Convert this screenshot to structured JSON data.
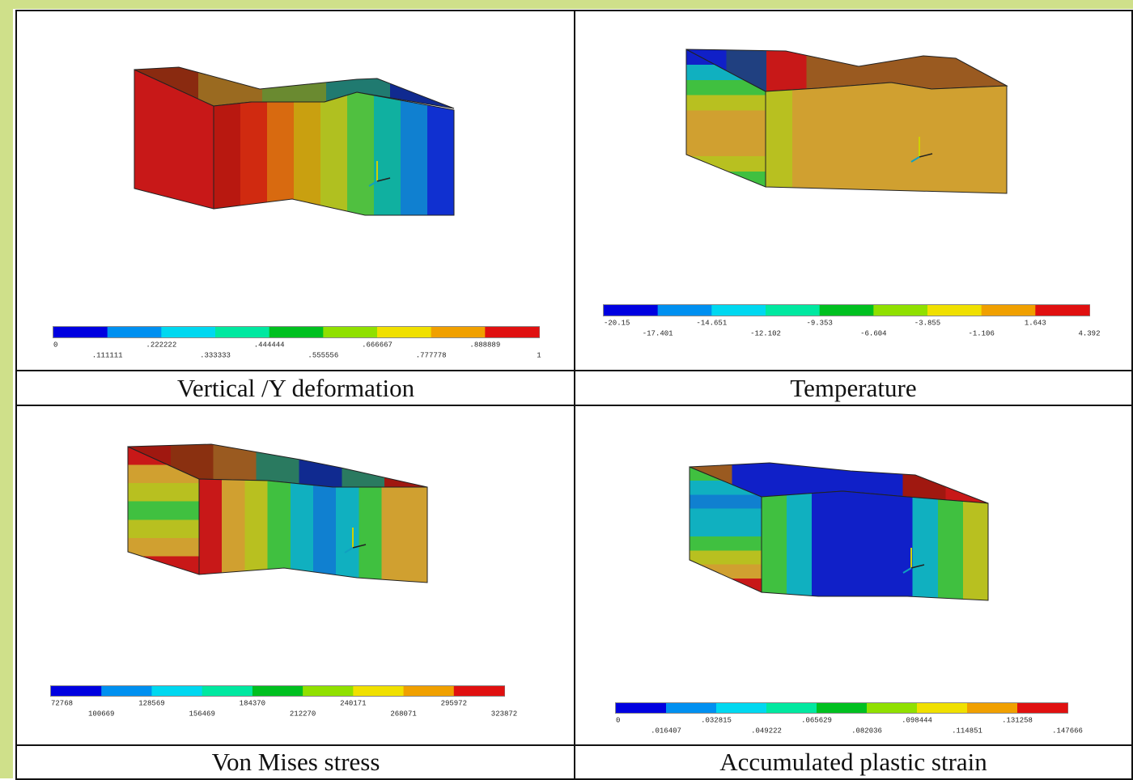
{
  "panels": [
    {
      "caption": "Vertical /Y deformation",
      "legend": {
        "labels": [
          "0",
          ".111111",
          ".222222",
          ".333333",
          ".444444",
          ".555556",
          ".666667",
          ".777778",
          ".888889",
          "1"
        ]
      }
    },
    {
      "caption": "Temperature",
      "legend": {
        "labels": [
          "-20.15",
          "-17.401",
          "-14.651",
          "-12.102",
          "-9.353",
          "-6.604",
          "-3.855",
          "-1.106",
          "1.643",
          "4.392"
        ]
      }
    },
    {
      "caption": "Von Mises stress",
      "legend": {
        "labels": [
          "72768",
          "100669",
          "128569",
          "156469",
          "184370",
          "212270",
          "240171",
          "268071",
          "295972",
          "323872"
        ]
      }
    },
    {
      "caption": "Accumulated plastic strain",
      "legend": {
        "labels": [
          "0",
          ".016407",
          ".032815",
          ".049222",
          ".065629",
          ".082036",
          ".098444",
          ".114851",
          ".131258",
          ".147666"
        ]
      }
    }
  ]
}
